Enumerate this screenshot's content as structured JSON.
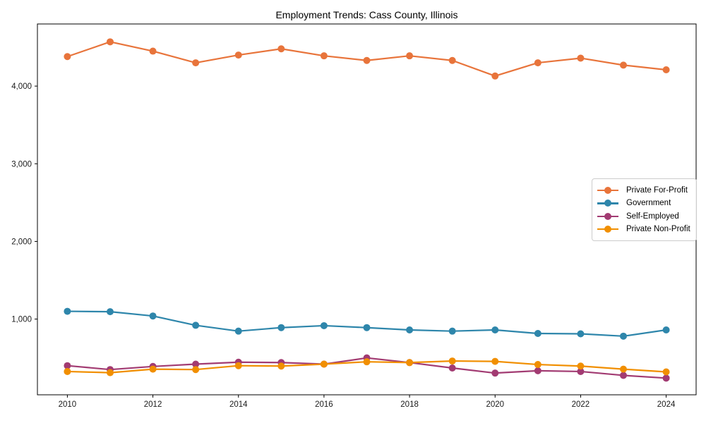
{
  "figure": {
    "background": "#ffffff",
    "spine_color": "#000000",
    "tick_label_color": "#1a1a1a"
  },
  "chart_data": {
    "type": "line",
    "title": "Employment Trends: Cass County, Illinois",
    "xlabel": "",
    "ylabel": "",
    "x": [
      2010,
      2011,
      2012,
      2013,
      2014,
      2015,
      2016,
      2017,
      2018,
      2019,
      2020,
      2021,
      2022,
      2023,
      2024
    ],
    "x_ticks": [
      2010,
      2012,
      2014,
      2016,
      2018,
      2020,
      2022,
      2024
    ],
    "x_tick_labels": [
      "2010",
      "2012",
      "2014",
      "2016",
      "2018",
      "2020",
      "2022",
      "2024"
    ],
    "y_ticks": [
      1000,
      2000,
      3000,
      4000
    ],
    "y_tick_labels": [
      "1,000",
      "2,000",
      "3,000",
      "4,000"
    ],
    "xlim": [
      2009.3,
      2024.7
    ],
    "ylim": [
      25,
      4800
    ],
    "grid": false,
    "legend_position": "center-right",
    "series": [
      {
        "name": "Private For-Profit",
        "color": "#E8743B",
        "values": [
          4380,
          4570,
          4450,
          4300,
          4400,
          4480,
          4390,
          4330,
          4390,
          4330,
          4130,
          4300,
          4360,
          4270,
          4210
        ]
      },
      {
        "name": "Government",
        "color": "#2E86AB",
        "values": [
          1100,
          1095,
          1040,
          920,
          845,
          890,
          915,
          890,
          860,
          845,
          860,
          815,
          810,
          780,
          860
        ]
      },
      {
        "name": "Self-Employed",
        "color": "#A23B72",
        "values": [
          400,
          350,
          390,
          420,
          445,
          440,
          420,
          500,
          440,
          370,
          305,
          335,
          325,
          275,
          240
        ]
      },
      {
        "name": "Private Non-Profit",
        "color": "#F18F01",
        "values": [
          325,
          310,
          355,
          350,
          400,
          395,
          420,
          450,
          440,
          460,
          455,
          415,
          395,
          355,
          320
        ]
      }
    ]
  }
}
